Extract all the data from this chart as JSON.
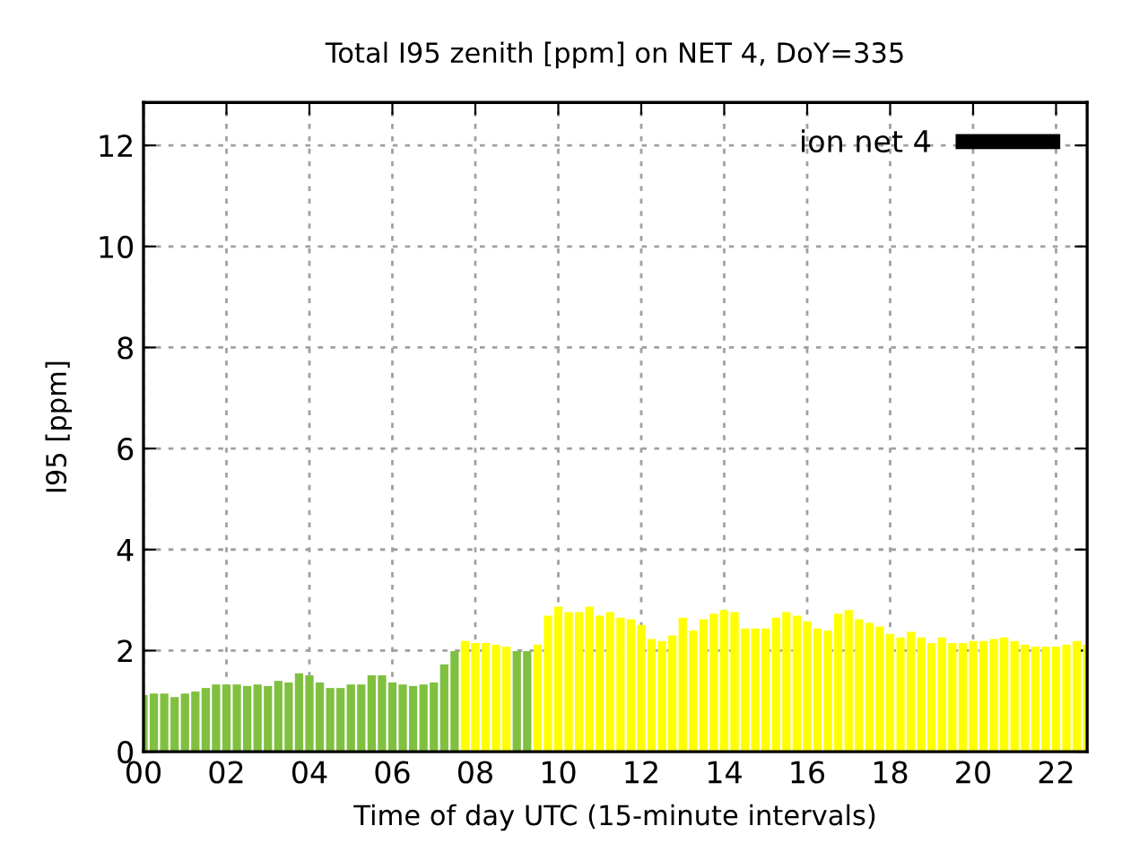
{
  "chart_data": {
    "type": "bar",
    "title": "Total I95 zenith [ppm] on NET 4, DoY=335",
    "xlabel": "Time of day UTC (15-minute intervals)",
    "ylabel": "I95 [ppm]",
    "x": [
      0,
      0.25,
      0.5,
      0.75,
      1,
      1.25,
      1.5,
      1.75,
      2,
      2.25,
      2.5,
      2.75,
      3,
      3.25,
      3.5,
      3.75,
      4,
      4.25,
      4.5,
      4.75,
      5,
      5.25,
      5.5,
      5.75,
      6,
      6.25,
      6.5,
      6.75,
      7,
      7.25,
      7.5,
      7.75,
      8,
      8.25,
      8.5,
      8.75,
      9,
      9.25,
      9.5,
      9.75,
      10,
      10.25,
      10.5,
      10.75,
      11,
      11.25,
      11.5,
      11.75,
      12,
      12.25,
      12.5,
      12.75,
      13,
      13.25,
      13.5,
      13.75,
      14,
      14.25,
      14.5,
      14.75,
      15,
      15.25,
      15.5,
      15.75,
      16,
      16.25,
      16.5,
      16.75,
      17,
      17.25,
      17.5,
      17.75,
      18,
      18.25,
      18.5,
      18.75,
      19,
      19.25,
      19.5,
      19.75,
      20,
      20.25,
      20.5,
      20.75,
      21,
      21.25,
      21.5,
      21.75,
      22,
      22.25,
      22.5,
      22.75
    ],
    "series": [
      {
        "name": "ion net 4",
        "color": "#000000",
        "values": [
          1.12,
          1.15,
          1.15,
          1.08,
          1.15,
          1.19,
          1.26,
          1.33,
          1.33,
          1.33,
          1.3,
          1.33,
          1.3,
          1.4,
          1.37,
          1.55,
          1.51,
          1.37,
          1.26,
          1.26,
          1.33,
          1.33,
          1.51,
          1.51,
          1.37,
          1.33,
          1.3,
          1.33,
          1.37,
          1.73,
          1.99,
          2.19,
          2.15,
          2.15,
          2.12,
          2.08,
          1.99,
          1.99,
          2.12,
          2.69,
          2.87,
          2.76,
          2.76,
          2.87,
          2.69,
          2.76,
          2.65,
          2.62,
          2.51,
          2.23,
          2.19,
          2.3,
          2.65,
          2.4,
          2.62,
          2.73,
          2.8,
          2.76,
          2.44,
          2.44,
          2.44,
          2.65,
          2.76,
          2.69,
          2.58,
          2.44,
          2.4,
          2.73,
          2.8,
          2.62,
          2.55,
          2.48,
          2.33,
          2.26,
          2.37,
          2.26,
          2.15,
          2.26,
          2.15,
          2.15,
          2.19,
          2.19,
          2.23,
          2.26,
          2.19,
          2.12,
          2.08,
          2.08,
          2.08,
          2.12,
          2.19,
          2.12
        ],
        "colors": [
          "#80c040",
          "#80c040",
          "#80c040",
          "#80c040",
          "#80c040",
          "#80c040",
          "#80c040",
          "#80c040",
          "#80c040",
          "#80c040",
          "#80c040",
          "#80c040",
          "#80c040",
          "#80c040",
          "#80c040",
          "#80c040",
          "#80c040",
          "#80c040",
          "#80c040",
          "#80c040",
          "#80c040",
          "#80c040",
          "#80c040",
          "#80c040",
          "#80c040",
          "#80c040",
          "#80c040",
          "#80c040",
          "#80c040",
          "#80c040",
          "#80c040",
          "#ffff00",
          "#ffff00",
          "#ffff00",
          "#ffff00",
          "#ffff00",
          "#80c040",
          "#80c040",
          "#ffff00",
          "#ffff00",
          "#ffff00",
          "#ffff00",
          "#ffff00",
          "#ffff00",
          "#ffff00",
          "#ffff00",
          "#ffff00",
          "#ffff00",
          "#ffff00",
          "#ffff00",
          "#ffff00",
          "#ffff00",
          "#ffff00",
          "#ffff00",
          "#ffff00",
          "#ffff00",
          "#ffff00",
          "#ffff00",
          "#ffff00",
          "#ffff00",
          "#ffff00",
          "#ffff00",
          "#ffff00",
          "#ffff00",
          "#ffff00",
          "#ffff00",
          "#ffff00",
          "#ffff00",
          "#ffff00",
          "#ffff00",
          "#ffff00",
          "#ffff00",
          "#ffff00",
          "#ffff00",
          "#ffff00",
          "#ffff00",
          "#ffff00",
          "#ffff00",
          "#ffff00",
          "#ffff00",
          "#ffff00",
          "#ffff00",
          "#ffff00",
          "#ffff00",
          "#ffff00",
          "#ffff00",
          "#ffff00",
          "#ffff00",
          "#ffff00",
          "#ffff00",
          "#ffff00",
          "#ffff00"
        ]
      }
    ],
    "xlim": [
      0,
      22.75
    ],
    "xticks": [
      {
        "value": 0,
        "label": "00"
      },
      {
        "value": 2,
        "label": "02"
      },
      {
        "value": 4,
        "label": "04"
      },
      {
        "value": 6,
        "label": "06"
      },
      {
        "value": 8,
        "label": "08"
      },
      10,
      12,
      14,
      16,
      18,
      20,
      22
    ],
    "ylim": [
      0,
      12.85
    ],
    "yticks": [
      0,
      2,
      4,
      6,
      8,
      10,
      12
    ],
    "grid": true,
    "legend": "top right"
  }
}
